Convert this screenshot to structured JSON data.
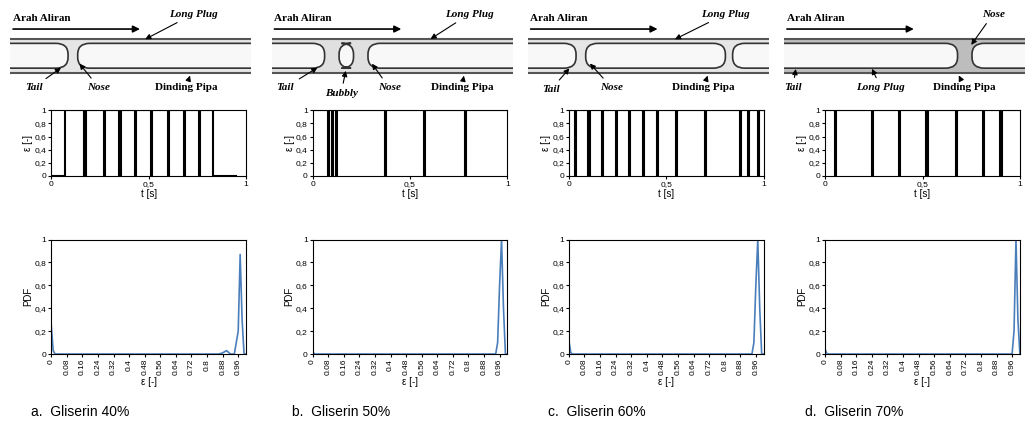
{
  "chart_data": [
    {
      "type": "line",
      "color": "#000000",
      "xlabel": "t [s]",
      "ylabel": "ε [-]",
      "x": [
        0,
        0.07,
        0.07,
        0.17,
        0.17,
        0.176,
        0.176,
        0.27,
        0.27,
        0.276,
        0.276,
        0.35,
        0.35,
        0.356,
        0.356,
        0.43,
        0.43,
        0.436,
        0.436,
        0.51,
        0.51,
        0.516,
        0.516,
        0.6,
        0.6,
        0.606,
        0.606,
        0.68,
        0.68,
        0.686,
        0.686,
        0.76,
        0.76,
        0.766,
        0.766,
        0.83,
        0.83,
        0.95
      ],
      "values": [
        0,
        0,
        1,
        1,
        0,
        0,
        1,
        1,
        0,
        0,
        1,
        1,
        0,
        0,
        1,
        1,
        0,
        0,
        1,
        1,
        0,
        0,
        1,
        1,
        0,
        0,
        1,
        1,
        0,
        0,
        1,
        1,
        0,
        0,
        1,
        1,
        0,
        0
      ],
      "xlim": [
        0,
        1
      ],
      "ylim": [
        0,
        1
      ],
      "xticks": [
        0,
        {
          "value": 0.5,
          "label": "0,5"
        },
        1
      ],
      "yticks": [
        0,
        {
          "value": 0.2,
          "label": "0,2"
        },
        {
          "value": 0.4,
          "label": "0,4"
        },
        {
          "value": 0.6,
          "label": "0,6"
        },
        {
          "value": 0.8,
          "label": "0,8"
        },
        1
      ]
    },
    {
      "type": "line",
      "color": "#4a7ebb",
      "xlabel": "ε [-]",
      "ylabel": "PDF",
      "x": [
        0,
        0.01,
        0.02,
        0.86,
        0.88,
        0.9,
        0.92,
        0.94,
        0.96,
        0.97,
        0.98,
        0.99,
        1.0
      ],
      "values": [
        0.25,
        0.03,
        0,
        0,
        0.01,
        0.03,
        0,
        0,
        0.2,
        0.87,
        0.3,
        0,
        0
      ],
      "xlim": [
        0,
        1
      ],
      "ylim": [
        0,
        1
      ],
      "xticks": [
        0,
        0.08,
        0.16,
        0.24,
        0.32,
        0.4,
        0.48,
        0.56,
        0.64,
        0.72,
        0.8,
        0.88,
        0.96
      ],
      "yticks": [
        0,
        {
          "value": 0.2,
          "label": "0,2"
        },
        {
          "value": 0.4,
          "label": "0,4"
        },
        {
          "value": 0.6,
          "label": "0,6"
        },
        {
          "value": 0.8,
          "label": "0,8"
        },
        1
      ]
    },
    {
      "type": "line",
      "color": "#000000",
      "xlabel": "t [s]",
      "ylabel": "ε [-]",
      "x": [
        0,
        0.08,
        0.08,
        0.086,
        0.086,
        0.1,
        0.1,
        0.106,
        0.106,
        0.12,
        0.12,
        0.126,
        0.126,
        0.37,
        0.37,
        0.376,
        0.376,
        0.57,
        0.57,
        0.576,
        0.576,
        0.78,
        0.78,
        0.786,
        0.786,
        1
      ],
      "values": [
        1,
        1,
        0,
        0,
        1,
        1,
        0,
        0,
        1,
        1,
        0,
        0,
        1,
        1,
        0,
        0,
        1,
        1,
        0,
        0,
        1,
        1,
        0,
        0,
        1,
        1
      ],
      "xlim": [
        0,
        1
      ],
      "ylim": [
        0,
        1
      ],
      "xticks": [
        0,
        {
          "value": 0.5,
          "label": "0,5"
        },
        1
      ],
      "yticks": [
        0,
        {
          "value": 0.2,
          "label": "0,2"
        },
        {
          "value": 0.4,
          "label": "0,4"
        },
        {
          "value": 0.6,
          "label": "0,6"
        },
        {
          "value": 0.8,
          "label": "0,8"
        },
        1
      ]
    },
    {
      "type": "line",
      "color": "#4a7ebb",
      "xlabel": "ε [-]",
      "ylabel": "PDF",
      "x": [
        0,
        0.01,
        0.02,
        0.94,
        0.95,
        0.96,
        0.97,
        0.98,
        0.99,
        1.0
      ],
      "values": [
        0.02,
        0,
        0,
        0,
        0.1,
        0.6,
        1.0,
        0.4,
        0,
        0
      ],
      "xlim": [
        0,
        1
      ],
      "ylim": [
        0,
        1
      ],
      "xticks": [
        0,
        0.08,
        0.16,
        0.24,
        0.32,
        0.4,
        0.48,
        0.56,
        0.64,
        0.72,
        0.8,
        0.88,
        0.96
      ],
      "yticks": [
        0,
        {
          "value": 0.2,
          "label": "0,2"
        },
        {
          "value": 0.4,
          "label": "0,4"
        },
        {
          "value": 0.6,
          "label": "0,6"
        },
        {
          "value": 0.8,
          "label": "0,8"
        },
        1
      ]
    },
    {
      "type": "line",
      "color": "#000000",
      "xlabel": "t [s]",
      "ylabel": "ε [-]",
      "x": [
        0,
        0.03,
        0.03,
        0.036,
        0.036,
        0.1,
        0.1,
        0.106,
        0.106,
        0.17,
        0.17,
        0.176,
        0.176,
        0.24,
        0.24,
        0.246,
        0.246,
        0.31,
        0.31,
        0.316,
        0.316,
        0.38,
        0.38,
        0.386,
        0.386,
        0.45,
        0.45,
        0.456,
        0.456,
        0.55,
        0.55,
        0.556,
        0.556,
        0.7,
        0.7,
        0.706,
        0.706,
        0.88,
        0.88,
        0.886,
        0.886,
        0.92,
        0.92,
        0.926,
        0.926,
        0.97,
        0.97,
        0.976,
        0.976,
        1
      ],
      "values": [
        1,
        1,
        0,
        0,
        1,
        1,
        0,
        0,
        1,
        1,
        0,
        0,
        1,
        1,
        0,
        0,
        1,
        1,
        0,
        0,
        1,
        1,
        0,
        0,
        1,
        1,
        0,
        0,
        1,
        1,
        0,
        0,
        1,
        1,
        0,
        0,
        1,
        1,
        0,
        0,
        1,
        1,
        0,
        0,
        1,
        1,
        0,
        0,
        1,
        1
      ],
      "xlim": [
        0,
        1
      ],
      "ylim": [
        0,
        1
      ],
      "xticks": [
        0,
        {
          "value": 0.5,
          "label": "0,5"
        },
        1
      ],
      "yticks": [
        0,
        {
          "value": 0.2,
          "label": "0,2"
        },
        {
          "value": 0.4,
          "label": "0,4"
        },
        {
          "value": 0.6,
          "label": "0,6"
        },
        {
          "value": 0.8,
          "label": "0,8"
        },
        1
      ]
    },
    {
      "type": "line",
      "color": "#4a7ebb",
      "xlabel": "ε [-]",
      "ylabel": "PDF",
      "x": [
        0,
        0.01,
        0.02,
        0.94,
        0.95,
        0.96,
        0.97,
        0.98,
        0.99,
        1.0
      ],
      "values": [
        0.12,
        0.01,
        0,
        0,
        0.1,
        0.6,
        1.0,
        0.4,
        0,
        0
      ],
      "xlim": [
        0,
        1
      ],
      "ylim": [
        0,
        1
      ],
      "xticks": [
        0,
        0.08,
        0.16,
        0.24,
        0.32,
        0.4,
        0.48,
        0.56,
        0.64,
        0.72,
        0.8,
        0.88,
        0.96
      ],
      "yticks": [
        0,
        {
          "value": 0.2,
          "label": "0,2"
        },
        {
          "value": 0.4,
          "label": "0,4"
        },
        {
          "value": 0.6,
          "label": "0,6"
        },
        {
          "value": 0.8,
          "label": "0,8"
        },
        1
      ]
    },
    {
      "type": "line",
      "color": "#000000",
      "xlabel": "t [s]",
      "ylabel": "ε [-]",
      "x": [
        0,
        0.05,
        0.05,
        0.056,
        0.056,
        0.24,
        0.24,
        0.246,
        0.246,
        0.38,
        0.38,
        0.386,
        0.386,
        0.52,
        0.52,
        0.526,
        0.526,
        0.67,
        0.67,
        0.676,
        0.676,
        0.81,
        0.81,
        0.816,
        0.816,
        0.9,
        0.9,
        0.906,
        0.906,
        1
      ],
      "values": [
        1,
        1,
        0,
        0,
        1,
        1,
        0,
        0,
        1,
        1,
        0,
        0,
        1,
        1,
        0,
        0,
        1,
        1,
        0,
        0,
        1,
        1,
        0,
        0,
        1,
        1,
        0,
        0,
        1,
        1
      ],
      "xlim": [
        0,
        1
      ],
      "ylim": [
        0,
        1
      ],
      "xticks": [
        0,
        {
          "value": 0.5,
          "label": "0,5"
        },
        1
      ],
      "yticks": [
        0,
        {
          "value": 0.2,
          "label": "0,2"
        },
        {
          "value": 0.4,
          "label": "0,4"
        },
        {
          "value": 0.6,
          "label": "0,6"
        },
        {
          "value": 0.8,
          "label": "0,8"
        },
        1
      ]
    },
    {
      "type": "line",
      "color": "#4a7ebb",
      "xlabel": "ε [-]",
      "ylabel": "PDF",
      "x": [
        0,
        0.01,
        0.02,
        0.96,
        0.97,
        0.98,
        0.99,
        1.0
      ],
      "values": [
        0.04,
        0,
        0,
        0,
        0.2,
        1.0,
        0.3,
        0
      ],
      "xlim": [
        0,
        1
      ],
      "ylim": [
        0,
        1
      ],
      "xticks": [
        0,
        0.08,
        0.16,
        0.24,
        0.32,
        0.4,
        0.48,
        0.56,
        0.64,
        0.72,
        0.8,
        0.88,
        0.96
      ],
      "yticks": [
        0,
        {
          "value": 0.2,
          "label": "0,2"
        },
        {
          "value": 0.4,
          "label": "0,4"
        },
        {
          "value": 0.6,
          "label": "0,6"
        },
        {
          "value": 0.8,
          "label": "0,8"
        },
        1
      ]
    }
  ],
  "panels": [
    {
      "caption": "a.  Gliserin 40%",
      "labels": [
        "Arah Aliran",
        "Long Plug",
        "Tail",
        "Nose",
        "Dinding Pipa"
      ]
    },
    {
      "caption": "b.  Gliserin 50%",
      "labels": [
        "Arah Aliran",
        "Long Plug",
        "Tail",
        "Bubbly",
        "Nose",
        "Dinding Pipa"
      ]
    },
    {
      "caption": "c.  Gliserin 60%",
      "labels": [
        "Arah Aliran",
        "Long Plug",
        "Tail",
        "Nose",
        "Dinding Pipa"
      ]
    },
    {
      "caption": "d.  Gliserin 70%",
      "labels": [
        "Arah Aliran",
        "Long Plug",
        "Nose",
        "Tail",
        "Dinding Pipa"
      ]
    }
  ]
}
